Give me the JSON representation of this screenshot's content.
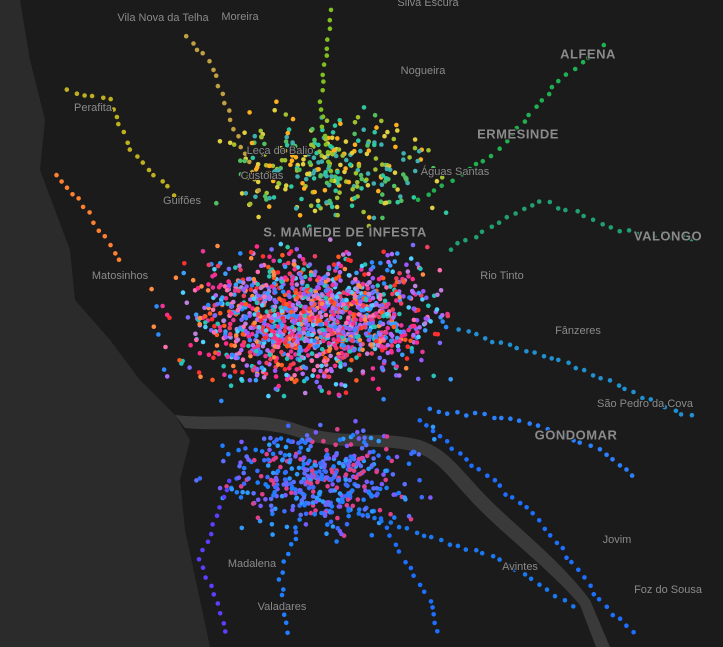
{
  "map": {
    "labels": [
      "Vila Nova da Telha",
      "Moreira",
      "Silva Escura",
      "ALFENA",
      "Nogueira",
      "Perafita",
      "ERMESINDE",
      "Leça do Balio",
      "Custóias",
      "Águas Santas",
      "Guifões",
      "S. MAMEDE DE INFESTA",
      "VALONGO",
      "Rio Tinto",
      "Matosinhos",
      "Fânzeres",
      "São Pedro da Cova",
      "GONDOMAR",
      "Jovim",
      "Madalena",
      "Avintes",
      "Valadares",
      "Foz do Sousa"
    ]
  }
}
